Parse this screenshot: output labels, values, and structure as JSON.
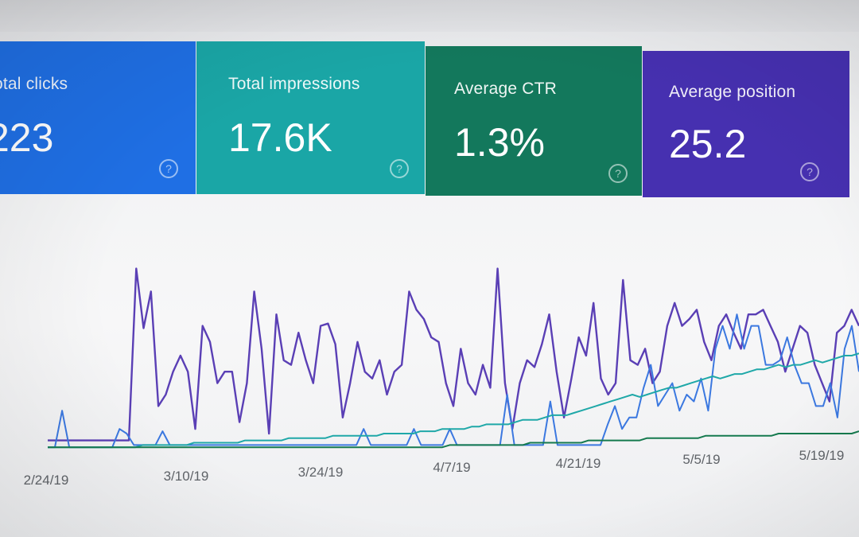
{
  "metrics": {
    "clicks": {
      "label": "otal clicks",
      "value": "223",
      "color": "#1f6fe4"
    },
    "impressions": {
      "label": "Total impressions",
      "value": "17.6K",
      "color": "#1aa6a6"
    },
    "ctr": {
      "label": "Average CTR",
      "value": "1.3%",
      "color": "#13785c"
    },
    "position": {
      "label": "Average position",
      "value": "25.2",
      "color": "#4630b0"
    },
    "help_glyph": "?"
  },
  "chart_data": {
    "type": "line",
    "x_ticks": [
      "2/24/19",
      "3/10/19",
      "3/24/19",
      "4/7/19",
      "4/21/19",
      "5/5/19",
      "5/19/19"
    ],
    "grid": false,
    "series": [
      {
        "color": "#5a3fb5",
        "values": [
          0.05,
          0.05,
          0.05,
          0.05,
          0.05,
          0.05,
          0.05,
          0.05,
          0.05,
          0.05,
          0.05,
          0.05,
          0.8,
          0.54,
          0.7,
          0.2,
          0.25,
          0.35,
          0.42,
          0.35,
          0.1,
          0.55,
          0.48,
          0.3,
          0.35,
          0.35,
          0.13,
          0.3,
          0.7,
          0.45,
          0.08,
          0.6,
          0.4,
          0.38,
          0.52,
          0.4,
          0.3,
          0.55,
          0.56,
          0.47,
          0.15,
          0.3,
          0.48,
          0.35,
          0.32,
          0.4,
          0.25,
          0.35,
          0.38,
          0.7,
          0.62,
          0.58,
          0.5,
          0.48,
          0.3,
          0.2,
          0.45,
          0.3,
          0.25,
          0.38,
          0.28,
          0.8,
          0.3,
          0.1,
          0.3,
          0.4,
          0.37,
          0.47,
          0.6,
          0.35,
          0.15,
          0.32,
          0.5,
          0.42,
          0.65,
          0.32,
          0.25,
          0.3,
          0.75,
          0.4,
          0.38,
          0.45,
          0.3,
          0.35,
          0.55,
          0.65,
          0.55,
          0.58,
          0.62,
          0.48,
          0.4,
          0.55,
          0.6,
          0.52,
          0.45,
          0.6,
          0.6,
          0.62,
          0.55,
          0.48,
          0.35,
          0.45,
          0.55,
          0.52,
          0.38,
          0.3,
          0.22,
          0.52,
          0.55,
          0.62,
          0.55
        ]
      },
      {
        "color": "#3b78e0",
        "values": [
          0.02,
          0.02,
          0.18,
          0.02,
          0.02,
          0.02,
          0.02,
          0.02,
          0.02,
          0.02,
          0.1,
          0.08,
          0.03,
          0.03,
          0.03,
          0.03,
          0.09,
          0.03,
          0.03,
          0.03,
          0.03,
          0.03,
          0.03,
          0.03,
          0.03,
          0.03,
          0.03,
          0.03,
          0.03,
          0.03,
          0.03,
          0.03,
          0.03,
          0.03,
          0.03,
          0.03,
          0.03,
          0.03,
          0.03,
          0.03,
          0.03,
          0.03,
          0.03,
          0.03,
          0.1,
          0.03,
          0.03,
          0.03,
          0.03,
          0.03,
          0.03,
          0.1,
          0.03,
          0.03,
          0.03,
          0.03,
          0.1,
          0.03,
          0.03,
          0.03,
          0.03,
          0.03,
          0.03,
          0.03,
          0.25,
          0.03,
          0.03,
          0.03,
          0.03,
          0.03,
          0.22,
          0.03,
          0.03,
          0.03,
          0.03,
          0.03,
          0.03,
          0.03,
          0.12,
          0.2,
          0.1,
          0.15,
          0.15,
          0.28,
          0.38,
          0.2,
          0.25,
          0.3,
          0.18,
          0.25,
          0.22,
          0.32,
          0.18,
          0.45,
          0.55,
          0.45,
          0.6,
          0.45,
          0.55,
          0.55,
          0.38,
          0.38,
          0.4,
          0.5,
          0.38,
          0.3,
          0.3,
          0.2,
          0.2,
          0.3,
          0.15,
          0.45,
          0.55,
          0.35
        ]
      },
      {
        "color": "#1fa8a8",
        "values": [
          0.02,
          0.02,
          0.02,
          0.02,
          0.02,
          0.02,
          0.02,
          0.02,
          0.02,
          0.02,
          0.02,
          0.02,
          0.02,
          0.03,
          0.03,
          0.03,
          0.03,
          0.03,
          0.03,
          0.03,
          0.04,
          0.04,
          0.04,
          0.04,
          0.04,
          0.04,
          0.04,
          0.05,
          0.05,
          0.05,
          0.05,
          0.05,
          0.05,
          0.06,
          0.06,
          0.06,
          0.06,
          0.06,
          0.06,
          0.07,
          0.07,
          0.07,
          0.07,
          0.07,
          0.07,
          0.07,
          0.08,
          0.08,
          0.08,
          0.08,
          0.08,
          0.09,
          0.09,
          0.09,
          0.1,
          0.1,
          0.1,
          0.1,
          0.11,
          0.11,
          0.12,
          0.12,
          0.12,
          0.12,
          0.13,
          0.14,
          0.14,
          0.14,
          0.15,
          0.16,
          0.16,
          0.16,
          0.17,
          0.18,
          0.19,
          0.2,
          0.21,
          0.22,
          0.23,
          0.24,
          0.25,
          0.24,
          0.25,
          0.26,
          0.27,
          0.28,
          0.28,
          0.29,
          0.3,
          0.31,
          0.32,
          0.33,
          0.32,
          0.33,
          0.34,
          0.34,
          0.35,
          0.36,
          0.36,
          0.37,
          0.38,
          0.37,
          0.38,
          0.38,
          0.39,
          0.4,
          0.39,
          0.4,
          0.41,
          0.42,
          0.42,
          0.43
        ]
      },
      {
        "color": "#157a4e",
        "values": [
          0.02,
          0.02,
          0.02,
          0.02,
          0.02,
          0.02,
          0.02,
          0.02,
          0.02,
          0.02,
          0.02,
          0.02,
          0.02,
          0.02,
          0.02,
          0.02,
          0.02,
          0.02,
          0.02,
          0.02,
          0.02,
          0.02,
          0.02,
          0.02,
          0.02,
          0.02,
          0.02,
          0.02,
          0.02,
          0.02,
          0.02,
          0.02,
          0.02,
          0.02,
          0.02,
          0.02,
          0.02,
          0.02,
          0.02,
          0.02,
          0.02,
          0.02,
          0.02,
          0.02,
          0.02,
          0.02,
          0.02,
          0.02,
          0.02,
          0.02,
          0.02,
          0.02,
          0.02,
          0.02,
          0.02,
          0.03,
          0.03,
          0.03,
          0.03,
          0.03,
          0.03,
          0.03,
          0.03,
          0.03,
          0.03,
          0.03,
          0.04,
          0.04,
          0.04,
          0.04,
          0.04,
          0.04,
          0.04,
          0.04,
          0.05,
          0.05,
          0.05,
          0.05,
          0.05,
          0.05,
          0.05,
          0.05,
          0.06,
          0.06,
          0.06,
          0.06,
          0.06,
          0.06,
          0.06,
          0.06,
          0.07,
          0.07,
          0.07,
          0.07,
          0.07,
          0.07,
          0.07,
          0.07,
          0.07,
          0.07,
          0.08,
          0.08,
          0.08,
          0.08,
          0.08,
          0.08,
          0.08,
          0.08,
          0.08,
          0.08,
          0.08,
          0.09
        ]
      }
    ]
  }
}
